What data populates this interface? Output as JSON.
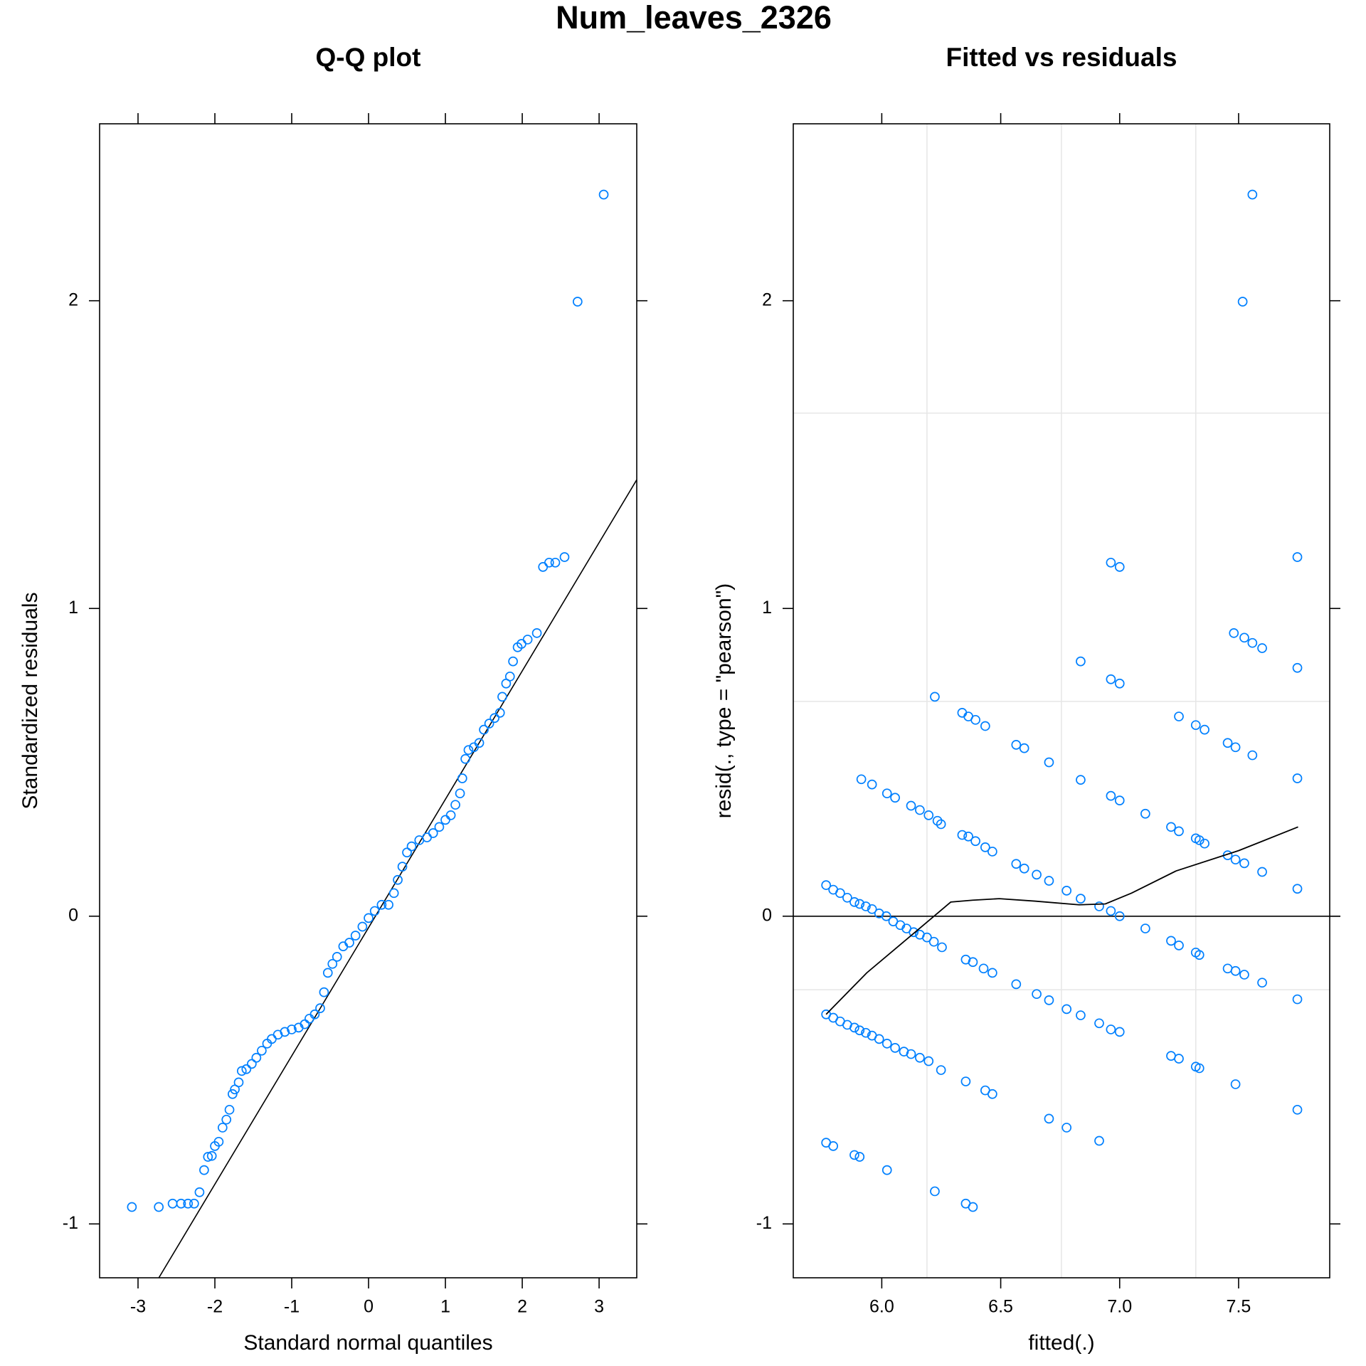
{
  "title": "Num_leaves_2326",
  "chart_data": [
    {
      "type": "scatter",
      "title": "Q-Q plot",
      "x_label": "Standard normal quantiles",
      "y_label": "Standardized residuals",
      "color": "#0080ff",
      "x": [
        -3.08,
        -2.73,
        -2.55,
        -2.44,
        -2.35,
        -2.27,
        -2.2,
        -2.14,
        -2.09,
        -2.04,
        -2.0,
        -1.95,
        -1.9,
        -1.85,
        -1.81,
        -1.77,
        -1.74,
        -1.69,
        -1.65,
        -1.59,
        -1.52,
        -1.46,
        -1.39,
        -1.32,
        -1.26,
        -1.18,
        -1.09,
        -1.0,
        -0.91,
        -0.83,
        -0.77,
        -0.7,
        -0.63,
        -0.58,
        -0.53,
        -0.47,
        -0.41,
        -0.33,
        -0.25,
        -0.17,
        -0.08,
        0,
        0.08,
        0.17,
        0.26,
        0.33,
        0.38,
        0.44,
        0.5,
        0.56,
        0.66,
        0.76,
        0.84,
        0.92,
        1.0,
        1.07,
        1.13,
        1.19,
        1.22,
        1.26,
        1.3,
        1.37,
        1.44,
        1.5,
        1.57,
        1.64,
        1.71,
        1.74,
        1.79,
        1.84,
        1.88,
        1.94,
        1.99,
        2.07,
        2.19,
        2.27,
        2.35,
        2.43,
        2.55,
        2.72,
        3.06
      ],
      "y": [
        -0.945,
        -0.945,
        -0.934,
        -0.934,
        -0.934,
        -0.934,
        -0.897,
        -0.825,
        -0.782,
        -0.779,
        -0.747,
        -0.733,
        -0.687,
        -0.661,
        -0.629,
        -0.578,
        -0.563,
        -0.54,
        -0.503,
        -0.497,
        -0.48,
        -0.46,
        -0.437,
        -0.414,
        -0.399,
        -0.385,
        -0.376,
        -0.368,
        -0.362,
        -0.351,
        -0.333,
        -0.319,
        -0.299,
        -0.247,
        -0.184,
        -0.155,
        -0.132,
        -0.098,
        -0.086,
        -0.063,
        -0.034,
        -0.006,
        0.017,
        0.037,
        0.037,
        0.075,
        0.118,
        0.161,
        0.207,
        0.227,
        0.247,
        0.256,
        0.27,
        0.29,
        0.313,
        0.328,
        0.362,
        0.399,
        0.448,
        0.511,
        0.54,
        0.549,
        0.563,
        0.606,
        0.626,
        0.644,
        0.661,
        0.713,
        0.756,
        0.779,
        0.828,
        0.874,
        0.885,
        0.899,
        0.92,
        1.135,
        1.149,
        1.149,
        1.167,
        1.997,
        2.345
      ],
      "reference_line": {
        "slope": 0.417,
        "intercept": -0.037
      },
      "xlim": [
        -3.5,
        3.49
      ],
      "ylim": [
        -1.175,
        2.575
      ],
      "xticks": [
        -3,
        -2,
        -1,
        0,
        1,
        2,
        3
      ],
      "yticks": [
        -1,
        0,
        1,
        2
      ]
    },
    {
      "type": "scatter",
      "title": "Fitted vs residuals",
      "x_label": "fitted(.)",
      "y_label": "resid(., type = \"pearson\")",
      "color": "#0080ff",
      "grid": true,
      "xgrid": [
        6.19,
        6.755,
        7.32
      ],
      "ygrid": [
        -0.239,
        0.698,
        1.635
      ],
      "hline": 0,
      "x": [
        5.766,
        5.796,
        5.825,
        5.855,
        5.885,
        5.907,
        5.933,
        5.959,
        5.989,
        6.019,
        6.048,
        6.078,
        6.104,
        6.134,
        6.16,
        6.19,
        6.219,
        6.253,
        6.353,
        6.383,
        6.428,
        6.465,
        6.565,
        6.651,
        6.703,
        6.777,
        6.836,
        6.914,
        6.963,
        7.0,
        5.914,
        5.959,
        6.022,
        6.056,
        6.123,
        6.16,
        6.197,
        6.234,
        6.249,
        6.338,
        6.364,
        6.394,
        6.435,
        6.465,
        6.565,
        6.599,
        6.651,
        6.703,
        6.777,
        6.836,
        6.914,
        6.963,
        7.0,
        6.223,
        6.338,
        6.364,
        6.394,
        6.435,
        6.565,
        6.599,
        6.703,
        6.836,
        6.963,
        7.0,
        7.108,
        7.216,
        7.249,
        7.32,
        7.335,
        7.357,
        7.454,
        7.487,
        7.524,
        7.599,
        7.747,
        6.836,
        6.963,
        7.0,
        7.249,
        7.32,
        7.357,
        7.454,
        7.487,
        7.558,
        7.747,
        6.963,
        7.0,
        7.48,
        7.524,
        7.558,
        7.599,
        7.747,
        7.747,
        5.766,
        5.796,
        5.825,
        5.855,
        5.885,
        5.907,
        5.933,
        5.959,
        5.989,
        6.022,
        6.056,
        6.093,
        6.123,
        6.16,
        6.197,
        6.249,
        6.353,
        6.435,
        6.465,
        5.766,
        5.796,
        5.885,
        5.907,
        6.022,
        6.223,
        6.353,
        6.383,
        6.703,
        6.777,
        6.914,
        7.108,
        7.216,
        7.249,
        7.32,
        7.335,
        7.454,
        7.487,
        7.524,
        7.599,
        7.747,
        7.216,
        7.249,
        7.32,
        7.335,
        7.487,
        7.747,
        7.517,
        7.558
      ],
      "y": [
        0.101,
        0.086,
        0.075,
        0.06,
        0.046,
        0.04,
        0.032,
        0.023,
        0.009,
        0,
        -0.017,
        -0.029,
        -0.04,
        -0.052,
        -0.06,
        -0.069,
        -0.083,
        -0.101,
        -0.141,
        -0.149,
        -0.17,
        -0.184,
        -0.221,
        -0.253,
        -0.273,
        -0.302,
        -0.322,
        -0.348,
        -0.368,
        -0.376,
        0.445,
        0.428,
        0.399,
        0.385,
        0.359,
        0.345,
        0.328,
        0.31,
        0.299,
        0.264,
        0.259,
        0.244,
        0.224,
        0.21,
        0.17,
        0.155,
        0.135,
        0.115,
        0.083,
        0.057,
        0.032,
        0.017,
        0,
        0.713,
        0.661,
        0.649,
        0.638,
        0.618,
        0.557,
        0.546,
        0.5,
        0.443,
        0.391,
        0.376,
        0.333,
        0.29,
        0.276,
        0.253,
        0.247,
        0.236,
        0.198,
        0.184,
        0.172,
        0.144,
        0.089,
        0.828,
        0.77,
        0.756,
        0.649,
        0.621,
        0.606,
        0.563,
        0.549,
        0.523,
        0.448,
        1.149,
        1.135,
        0.92,
        0.905,
        0.888,
        0.871,
        0.807,
        1.167,
        -0.319,
        -0.33,
        -0.342,
        -0.353,
        -0.362,
        -0.371,
        -0.379,
        -0.388,
        -0.399,
        -0.414,
        -0.428,
        -0.44,
        -0.448,
        -0.46,
        -0.471,
        -0.5,
        -0.537,
        -0.566,
        -0.578,
        -0.736,
        -0.747,
        -0.776,
        -0.782,
        -0.825,
        -0.894,
        -0.934,
        -0.945,
        -0.658,
        -0.687,
        -0.73,
        -0.04,
        -0.08,
        -0.095,
        -0.118,
        -0.126,
        -0.17,
        -0.178,
        -0.19,
        -0.216,
        -0.27,
        -0.454,
        -0.463,
        -0.489,
        -0.494,
        -0.546,
        -0.629,
        1.997,
        2.345
      ],
      "smooth": {
        "x": [
          5.766,
          5.937,
          6.123,
          6.29,
          6.383,
          6.494,
          6.643,
          6.829,
          6.94,
          7.05,
          7.237,
          7.5,
          7.75
        ],
        "y": [
          -0.319,
          -0.184,
          -0.063,
          0.046,
          0.052,
          0.057,
          0.049,
          0.037,
          0.04,
          0.075,
          0.147,
          0.213,
          0.29
        ]
      },
      "xlim": [
        5.628,
        7.883
      ],
      "ylim": [
        -1.175,
        2.575
      ],
      "xticks": [
        {
          "value": 6,
          "label": "6.0"
        },
        6.5,
        {
          "value": 7,
          "label": "7.0"
        },
        7.5
      ],
      "yticks": [
        -1,
        0,
        1,
        2
      ]
    }
  ]
}
